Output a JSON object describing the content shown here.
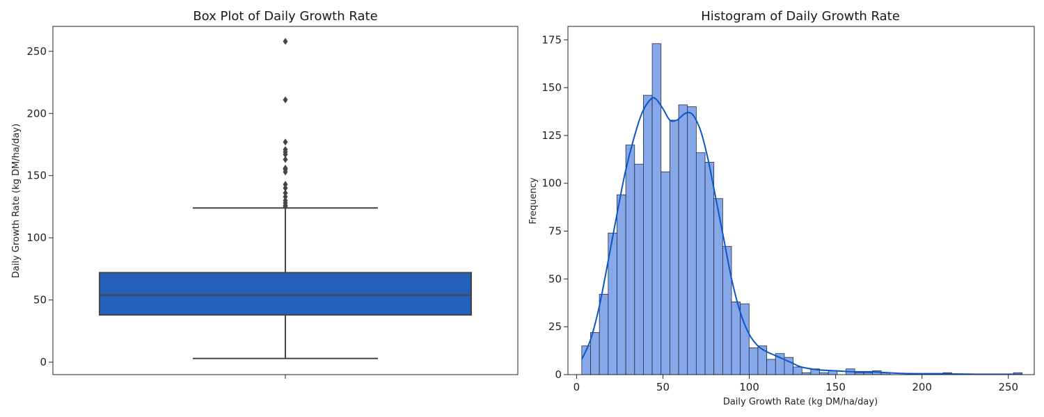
{
  "chart_data": [
    {
      "type": "box",
      "title": "Box Plot of Daily Growth Rate",
      "ylabel": "Daily Growth Rate (kg DM/ha/day)",
      "xlabel": "",
      "ylim": [
        -10,
        270
      ],
      "yticks": [
        0,
        50,
        100,
        150,
        200,
        250
      ],
      "grid": false,
      "box": {
        "whisker_low": 3,
        "q1": 38,
        "median": 54,
        "q3": 72,
        "whisker_high": 124,
        "outliers": [
          125,
          126,
          128,
          130,
          133,
          136,
          140,
          143,
          153,
          155,
          156,
          163,
          167,
          169,
          171,
          177,
          211,
          258
        ]
      },
      "color": "#2360B8",
      "line_color": "#444444"
    },
    {
      "type": "histogram",
      "title": "Histogram of Daily Growth Rate",
      "xlabel": "Daily Growth Rate (kg DM/ha/day)",
      "ylabel": "Frequency",
      "xlim": [
        -5,
        265
      ],
      "ylim": [
        0,
        182
      ],
      "xticks": [
        0,
        50,
        100,
        150,
        200,
        250
      ],
      "yticks": [
        0,
        25,
        50,
        75,
        100,
        125,
        150,
        175
      ],
      "grid": false,
      "bin_start": 3.0,
      "bin_width": 5.1,
      "counts": [
        15,
        22,
        42,
        74,
        94,
        120,
        110,
        146,
        173,
        106,
        133,
        141,
        140,
        116,
        111,
        92,
        67,
        38,
        37,
        14,
        15,
        8,
        11,
        9,
        4,
        1,
        3,
        1,
        2,
        0,
        3,
        1,
        1,
        2,
        1,
        0,
        0,
        0,
        0,
        0,
        0,
        1,
        0,
        0,
        0,
        0,
        0,
        0,
        0,
        1
      ],
      "kde": {
        "x": [
          3,
          8,
          13,
          18,
          23,
          28,
          33,
          38,
          43,
          46,
          50,
          54,
          58,
          62,
          65,
          68,
          72,
          76,
          80,
          85,
          90,
          95,
          100,
          105,
          110,
          115,
          120,
          125,
          130,
          140,
          150,
          160,
          170,
          180,
          190,
          200,
          210,
          220,
          230,
          240,
          250,
          258
        ],
        "y": [
          8,
          18,
          35,
          58,
          82,
          105,
          123,
          137,
          144,
          144,
          139,
          133,
          133,
          136,
          137,
          135,
          127,
          113,
          95,
          72,
          49,
          32,
          21,
          15,
          12,
          10,
          8,
          6,
          4,
          2.5,
          2,
          1.5,
          1.5,
          1,
          0.6,
          0.5,
          0.5,
          0.3,
          0.2,
          0.2,
          0.2,
          0.2
        ]
      },
      "bar_color": "#86A7E8",
      "edge_color": "#1f2a44",
      "kde_color": "#0B55C8"
    }
  ]
}
